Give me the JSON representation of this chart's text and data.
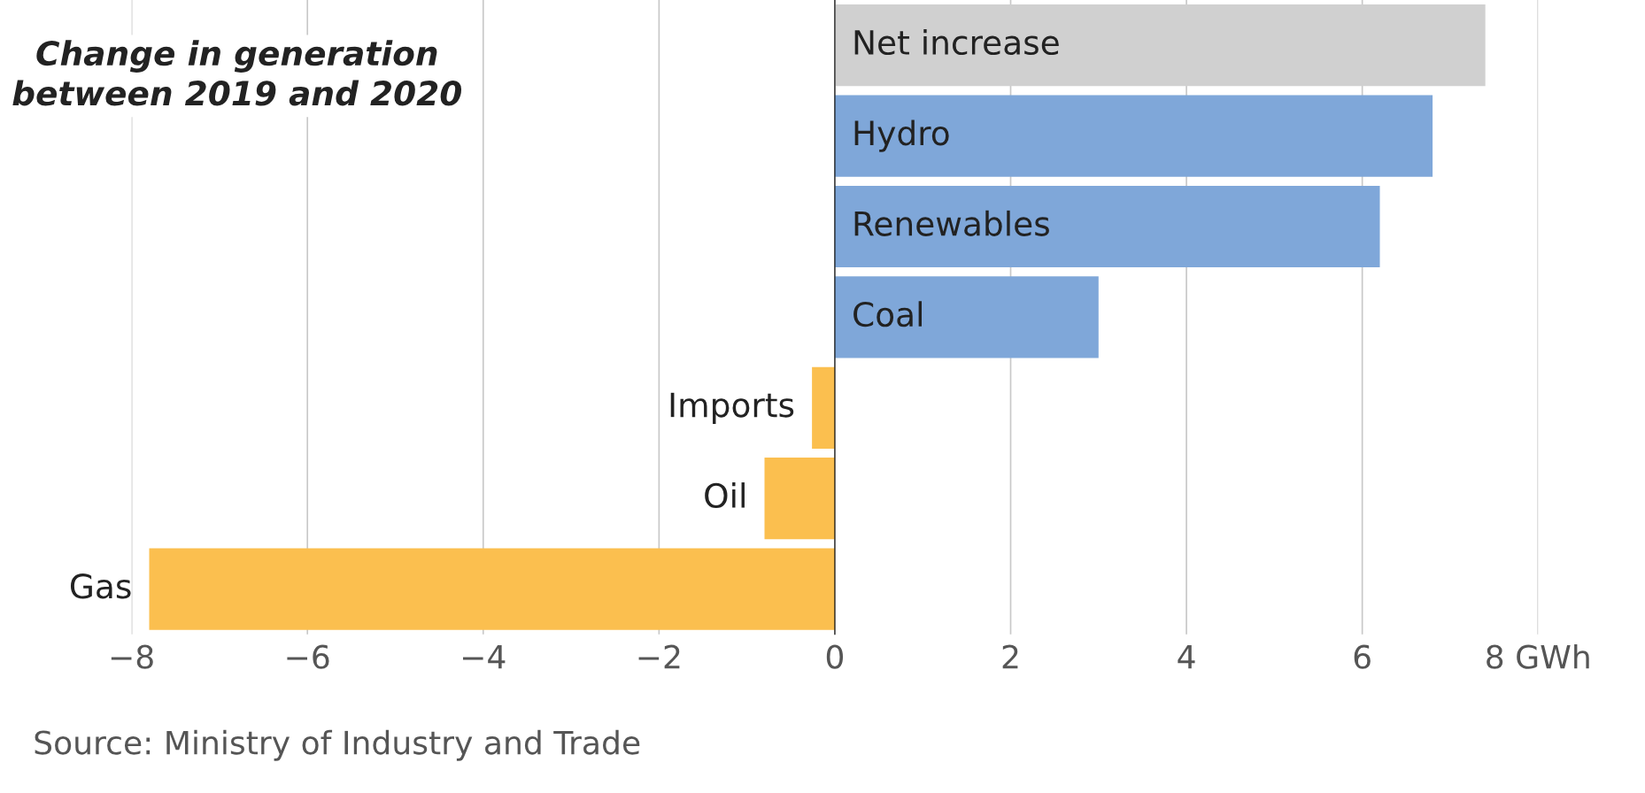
{
  "chart_data": {
    "type": "bar",
    "orientation": "horizontal",
    "title": "Change in generation\nbetween 2019 and 2020",
    "categories": [
      "Net increase",
      "Hydro",
      "Renewables",
      "Coal",
      "Imports",
      "Oil",
      "Gas"
    ],
    "values": [
      7.4,
      6.8,
      6.2,
      3.0,
      -0.26,
      -0.8,
      -7.8
    ],
    "colors": [
      "#d0d0d0",
      "#7fa7d9",
      "#7fa7d9",
      "#7fa7d9",
      "#fbbf4f",
      "#fbbf4f",
      "#fbbf4f"
    ],
    "xlim": [
      -8,
      8
    ],
    "xticks": [
      {
        "value": -8,
        "label": "−8"
      },
      {
        "value": -6,
        "label": "−6"
      },
      {
        "value": -4,
        "label": "−4"
      },
      {
        "value": -2,
        "label": "−2"
      },
      0,
      2,
      4,
      6,
      {
        "value": 8,
        "label": "8 GWh"
      }
    ],
    "grid": "x",
    "annotations": [
      "Source: Ministry of Industry and Trade"
    ]
  }
}
